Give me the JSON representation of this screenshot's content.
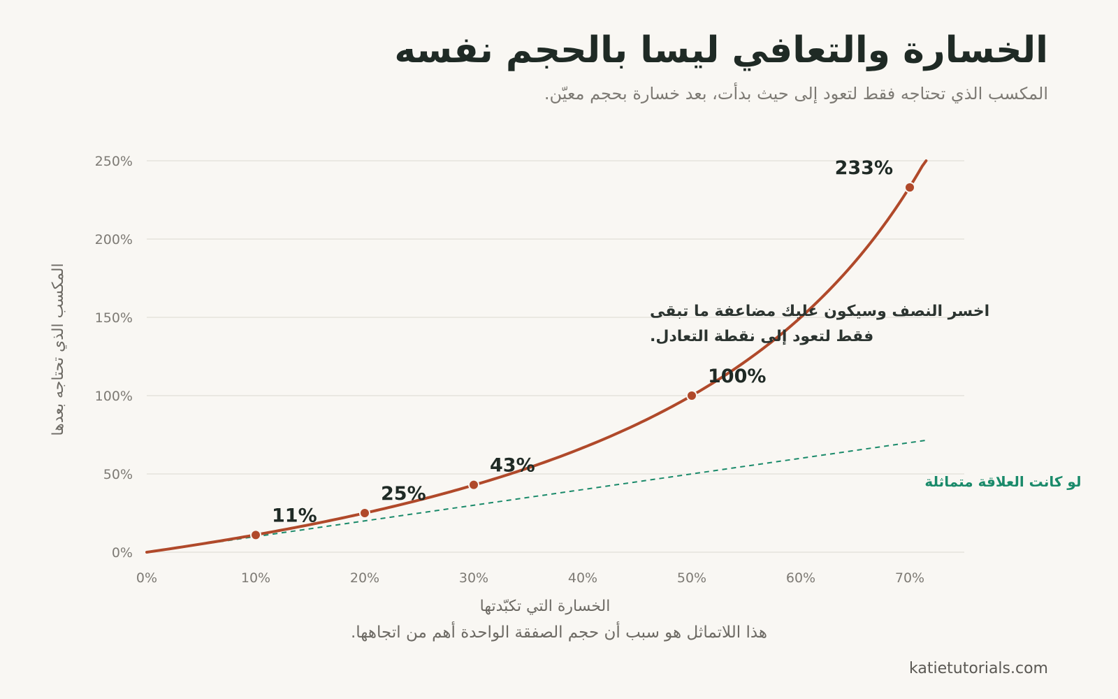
{
  "title": "الخسارة والتعافي ليسا بالحجم نفسه",
  "subtitle": "المكسب الذي تحتاجه فقط لتعود إلى حيث بدأت، بعد خسارة بحجم معيّن.",
  "caption": "هذا اللاتماثل هو سبب أن حجم الصفقة الواحدة أهم من اتجاهها.",
  "source": "katietutorials.com",
  "colors": {
    "curve": "#b0492a",
    "reference": "#1a8a6a",
    "grid": "#e6e3dd",
    "background": "#f9f7f3"
  },
  "chart_data": {
    "type": "line",
    "xlabel": "الخسارة التي تكبّدتها",
    "ylabel": "المكسب الذي تحتاجه بعدها",
    "xlim": [
      0,
      0.75
    ],
    "ylim": [
      0,
      2.5
    ],
    "curve_domain": [
      0,
      0.715
    ],
    "x_ticks": [
      0,
      0.1,
      0.2,
      0.3,
      0.4,
      0.5,
      0.6,
      0.7
    ],
    "x_tick_labels": [
      "0%",
      "10%",
      "20%",
      "30%",
      "40%",
      "50%",
      "60%",
      "70%"
    ],
    "y_ticks": [
      0,
      0.5,
      1.0,
      1.5,
      2.0,
      2.5
    ],
    "y_tick_labels": [
      "0%",
      "50%",
      "100%",
      "150%",
      "200%",
      "250%"
    ],
    "grid": "horizontal",
    "series": [
      {
        "formula": "y = x / (1 - x)",
        "highlight_points": [
          {
            "x": 0.1,
            "y": 0.11,
            "label": "11%"
          },
          {
            "x": 0.2,
            "y": 0.25,
            "label": "25%"
          },
          {
            "x": 0.3,
            "y": 0.43,
            "label": "43%"
          },
          {
            "x": 0.5,
            "y": 1.0,
            "label": "100%"
          },
          {
            "x": 0.7,
            "y": 2.33,
            "label": "233%"
          }
        ]
      },
      {
        "name": "لو كانت العلاقة متماثلة",
        "formula": "y = x",
        "style": "dashed"
      }
    ],
    "annotation": {
      "lines": [
        "اخسر النصف وسيكون عليك مضاعفة ما تبقى",
        "فقط لتعود إلى نقطة التعادل."
      ]
    }
  }
}
